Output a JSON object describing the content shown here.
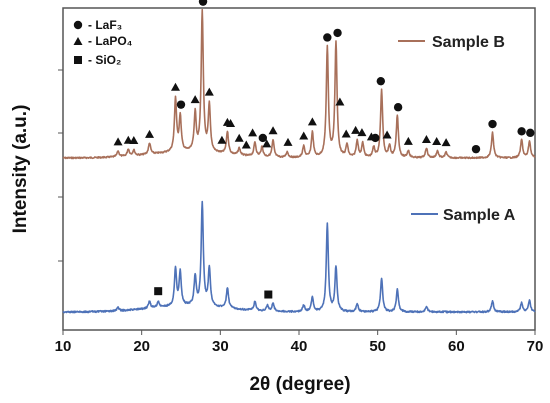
{
  "chart_data": {
    "type": "line",
    "xlabel": "2θ (degree)",
    "ylabel": "Intensity (a.u.)",
    "xlim": [
      10,
      70
    ],
    "xticks": [
      "10",
      "20",
      "30",
      "40",
      "50",
      "60",
      "70"
    ],
    "legend_position": "top-left",
    "legend": [
      {
        "marker": "circle",
        "label": "- LaF₃"
      },
      {
        "marker": "triangle",
        "label": "- LaPO₄"
      },
      {
        "marker": "square",
        "label": "- SiO₂"
      }
    ],
    "series": [
      {
        "name": "Sample B",
        "color": "#a8705a",
        "peaks": [
          [
            17.0,
            0.04
          ],
          [
            18.3,
            0.05
          ],
          [
            19.0,
            0.04
          ],
          [
            21.0,
            0.08
          ],
          [
            24.3,
            0.38
          ],
          [
            24.9,
            0.25
          ],
          [
            26.8,
            0.27
          ],
          [
            27.7,
            1.0
          ],
          [
            28.6,
            0.33
          ],
          [
            30.9,
            0.16
          ],
          [
            32.4,
            0.05
          ],
          [
            34.4,
            0.1
          ],
          [
            35.3,
            0.07
          ],
          [
            36.7,
            0.12
          ],
          [
            38.5,
            0.04
          ],
          [
            40.6,
            0.08
          ],
          [
            41.7,
            0.18
          ],
          [
            43.6,
            0.78
          ],
          [
            44.7,
            0.82
          ],
          [
            46.1,
            0.09
          ],
          [
            47.4,
            0.12
          ],
          [
            48.1,
            0.1
          ],
          [
            49.5,
            0.07
          ],
          [
            50.5,
            0.48
          ],
          [
            51.5,
            0.08
          ],
          [
            52.5,
            0.3
          ],
          [
            53.9,
            0.05
          ],
          [
            56.2,
            0.07
          ],
          [
            57.6,
            0.05
          ],
          [
            58.7,
            0.04
          ],
          [
            64.6,
            0.18
          ],
          [
            68.3,
            0.13
          ],
          [
            69.3,
            0.12
          ]
        ]
      },
      {
        "name": "Sample A",
        "color": "#4e72b8",
        "peaks": [
          [
            17.0,
            0.03
          ],
          [
            21.0,
            0.06
          ],
          [
            22.1,
            0.05
          ],
          [
            24.3,
            0.33
          ],
          [
            24.9,
            0.3
          ],
          [
            26.8,
            0.26
          ],
          [
            27.7,
            0.92
          ],
          [
            28.6,
            0.34
          ],
          [
            30.9,
            0.18
          ],
          [
            34.4,
            0.08
          ],
          [
            36.0,
            0.05
          ],
          [
            36.7,
            0.07
          ],
          [
            40.6,
            0.06
          ],
          [
            41.7,
            0.13
          ],
          [
            43.6,
            0.78
          ],
          [
            44.7,
            0.4
          ],
          [
            47.4,
            0.07
          ],
          [
            50.5,
            0.3
          ],
          [
            52.5,
            0.2
          ],
          [
            56.2,
            0.05
          ],
          [
            64.6,
            0.1
          ],
          [
            68.3,
            0.08
          ],
          [
            69.3,
            0.1
          ]
        ]
      }
    ],
    "markers": {
      "circle": [
        27.8,
        25.0,
        43.6,
        44.9,
        50.4,
        52.6,
        35.4,
        49.7,
        62.5,
        64.6,
        68.3,
        69.4
      ],
      "triangle": [
        17.0,
        18.3,
        19.0,
        21.0,
        24.3,
        26.8,
        28.6,
        30.9,
        32.4,
        34.1,
        35.9,
        36.7,
        38.6,
        40.6,
        41.7,
        46.0,
        47.2,
        48.0,
        49.2,
        51.2,
        53.9,
        56.2,
        57.5,
        58.7,
        30.2,
        31.3,
        33.3,
        45.2
      ],
      "square": [
        22.1,
        36.1
      ]
    }
  }
}
